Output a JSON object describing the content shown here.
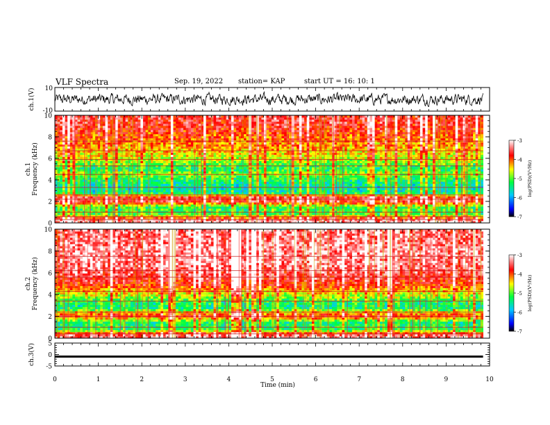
{
  "header": {
    "title": "VLF Spectra",
    "date": "Sep. 19, 2022",
    "station": "station= KAP",
    "start": "start  UT =   16: 10: 1"
  },
  "chart_data": [
    {
      "type": "line",
      "panel": "ch1-waveform",
      "ylabel": "ch.1(V)",
      "ylim": [
        -10,
        10
      ],
      "yticks": [
        "10",
        "-10"
      ],
      "xlim": [
        0,
        10
      ],
      "description_values": {
        "baseline": 0,
        "typical_amplitude": 3.5,
        "color": "#000000"
      }
    },
    {
      "type": "heatmap",
      "panel": "ch1-spectrogram",
      "ylabel": "ch.1\nFrequency (kHz)",
      "ylim": [
        0,
        10
      ],
      "yticks": [
        "0",
        "2",
        "4",
        "6",
        "8",
        "10"
      ],
      "xlim": [
        0,
        9.85
      ],
      "colorbar": {
        "label": "log(PSD)(V²/Hz)",
        "range": [
          -7,
          -3
        ],
        "ticks": [
          "-3",
          "-4",
          "-5",
          "-6",
          "-7"
        ]
      },
      "horizontal_lines_khz": [
        0.3,
        0.6,
        1.0,
        2.2,
        2.6,
        3.3,
        4.5,
        5.3,
        5.9,
        6.7,
        7.6
      ],
      "level_profile": [
        [
          0,
          -3.2
        ],
        [
          0.3,
          -3.3
        ],
        [
          0.8,
          -5.1
        ],
        [
          1.5,
          -5.2
        ],
        [
          2.0,
          -3.6
        ],
        [
          2.4,
          -3.7
        ],
        [
          2.8,
          -5.4
        ],
        [
          3.3,
          -5.6
        ],
        [
          4.0,
          -5.3
        ],
        [
          4.6,
          -4.8
        ],
        [
          5.0,
          -5.3
        ],
        [
          5.5,
          -5.0
        ],
        [
          6.0,
          -4.6
        ],
        [
          7.0,
          -4.3
        ],
        [
          8.0,
          -4.0
        ],
        [
          9.0,
          -3.7
        ],
        [
          10.0,
          -3.6
        ]
      ]
    },
    {
      "type": "heatmap",
      "panel": "ch2-spectrogram",
      "ylabel": "ch.2\nFrequency (kHz)",
      "ylim": [
        0,
        10
      ],
      "yticks": [
        "0",
        "2",
        "4",
        "6",
        "8",
        "10"
      ],
      "xlim": [
        0,
        9.85
      ],
      "colorbar": {
        "label": "log(PSD)(V²/Hz)",
        "range": [
          -7,
          -3
        ],
        "ticks": [
          "-3",
          "-4",
          "-5",
          "-6",
          "-7"
        ]
      },
      "horizontal_lines_khz": [
        0.4,
        1.0,
        2.0,
        2.4,
        3.4,
        4.3,
        5.6,
        6.2,
        7.5
      ],
      "level_profile": [
        [
          0,
          -3.3
        ],
        [
          0.4,
          -3.6
        ],
        [
          0.8,
          -5.2
        ],
        [
          1.5,
          -5.3
        ],
        [
          2.0,
          -3.9
        ],
        [
          2.3,
          -4.2
        ],
        [
          2.8,
          -5.4
        ],
        [
          3.4,
          -5.2
        ],
        [
          4.0,
          -4.6
        ],
        [
          5.0,
          -3.8
        ],
        [
          6.0,
          -3.5
        ],
        [
          7.0,
          -3.3
        ],
        [
          8.0,
          -3.3
        ],
        [
          9.0,
          -3.4
        ],
        [
          10.0,
          -3.4
        ]
      ]
    },
    {
      "type": "line",
      "panel": "ch3-waveform",
      "ylabel": "ch.3(V)",
      "ylim": [
        -5,
        5
      ],
      "yticks": [
        "5",
        "0",
        "-5"
      ],
      "xlim": [
        0,
        10
      ],
      "xlabel": "Time  (min)",
      "xticks": [
        "0",
        "1",
        "2",
        "3",
        "4",
        "5",
        "6",
        "7",
        "8",
        "9",
        "10"
      ],
      "description_values": {
        "baseline": -0.9,
        "band_half_width": 0.45,
        "x_end": 9.85,
        "color": "#000000"
      }
    }
  ]
}
